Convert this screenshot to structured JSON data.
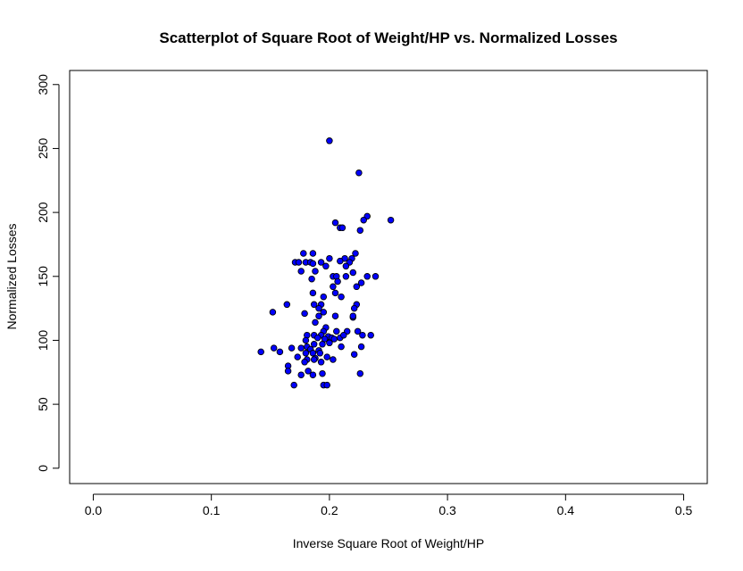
{
  "chart_data": {
    "type": "scatter",
    "title": "Scatterplot of Square Root of Weight/HP vs. Normalized Losses",
    "xlabel": "Inverse Square Root of Weight/HP",
    "ylabel": "Normalized Losses",
    "xlim": [
      -0.02,
      0.52
    ],
    "ylim": [
      -12,
      311
    ],
    "x_ticks": [
      0.0,
      0.1,
      0.2,
      0.3,
      0.4,
      0.5
    ],
    "x_tick_labels": [
      "0.0",
      "0.1",
      "0.2",
      "0.3",
      "0.4",
      "0.5"
    ],
    "y_ticks": [
      0,
      50,
      100,
      150,
      200,
      250,
      300
    ],
    "y_tick_labels": [
      "0",
      "50",
      "100",
      "150",
      "200",
      "250",
      "300"
    ],
    "grid": false,
    "point_fill": "#0000ff",
    "point_stroke": "#000000",
    "points": [
      [
        0.2,
        256
      ],
      [
        0.225,
        231
      ],
      [
        0.232,
        197
      ],
      [
        0.229,
        194
      ],
      [
        0.252,
        194
      ],
      [
        0.205,
        192
      ],
      [
        0.209,
        188
      ],
      [
        0.211,
        188
      ],
      [
        0.226,
        186
      ],
      [
        0.178,
        168
      ],
      [
        0.186,
        168
      ],
      [
        0.222,
        168
      ],
      [
        0.219,
        164
      ],
      [
        0.2,
        164
      ],
      [
        0.213,
        164
      ],
      [
        0.209,
        162
      ],
      [
        0.171,
        161
      ],
      [
        0.174,
        161
      ],
      [
        0.18,
        161
      ],
      [
        0.184,
        161
      ],
      [
        0.193,
        161
      ],
      [
        0.217,
        161
      ],
      [
        0.186,
        160
      ],
      [
        0.214,
        158
      ],
      [
        0.197,
        158
      ],
      [
        0.176,
        154
      ],
      [
        0.188,
        154
      ],
      [
        0.22,
        153
      ],
      [
        0.232,
        150
      ],
      [
        0.239,
        150
      ],
      [
        0.203,
        150
      ],
      [
        0.206,
        150
      ],
      [
        0.214,
        150
      ],
      [
        0.185,
        148
      ],
      [
        0.227,
        145
      ],
      [
        0.207,
        146
      ],
      [
        0.203,
        142
      ],
      [
        0.223,
        142
      ],
      [
        0.186,
        137
      ],
      [
        0.205,
        137
      ],
      [
        0.21,
        134
      ],
      [
        0.195,
        134
      ],
      [
        0.223,
        128
      ],
      [
        0.187,
        128
      ],
      [
        0.193,
        128
      ],
      [
        0.179,
        121
      ],
      [
        0.164,
        128
      ],
      [
        0.191,
        125
      ],
      [
        0.221,
        125
      ],
      [
        0.195,
        122
      ],
      [
        0.152,
        122
      ],
      [
        0.191,
        119
      ],
      [
        0.205,
        119
      ],
      [
        0.22,
        118
      ],
      [
        0.22,
        119
      ],
      [
        0.188,
        114
      ],
      [
        0.197,
        110
      ],
      [
        0.195,
        107
      ],
      [
        0.206,
        107
      ],
      [
        0.215,
        107
      ],
      [
        0.224,
        107
      ],
      [
        0.181,
        104
      ],
      [
        0.235,
        104
      ],
      [
        0.187,
        104
      ],
      [
        0.193,
        104
      ],
      [
        0.199,
        103
      ],
      [
        0.202,
        102
      ],
      [
        0.209,
        102
      ],
      [
        0.212,
        104
      ],
      [
        0.228,
        104
      ],
      [
        0.19,
        102
      ],
      [
        0.196,
        101
      ],
      [
        0.204,
        101
      ],
      [
        0.18,
        100
      ],
      [
        0.187,
        97
      ],
      [
        0.194,
        97
      ],
      [
        0.2,
        98
      ],
      [
        0.176,
        94
      ],
      [
        0.181,
        95
      ],
      [
        0.21,
        95
      ],
      [
        0.227,
        95
      ],
      [
        0.168,
        94
      ],
      [
        0.153,
        94
      ],
      [
        0.184,
        93
      ],
      [
        0.191,
        92
      ],
      [
        0.158,
        91
      ],
      [
        0.142,
        91
      ],
      [
        0.186,
        90
      ],
      [
        0.192,
        90
      ],
      [
        0.18,
        90
      ],
      [
        0.221,
        89
      ],
      [
        0.173,
        87
      ],
      [
        0.198,
        87
      ],
      [
        0.188,
        86
      ],
      [
        0.181,
        85
      ],
      [
        0.187,
        85
      ],
      [
        0.203,
        85
      ],
      [
        0.193,
        83
      ],
      [
        0.179,
        83
      ],
      [
        0.165,
        80
      ],
      [
        0.182,
        76
      ],
      [
        0.165,
        76
      ],
      [
        0.194,
        74
      ],
      [
        0.226,
        74
      ],
      [
        0.176,
        73
      ],
      [
        0.186,
        73
      ],
      [
        0.195,
        65
      ],
      [
        0.17,
        65
      ],
      [
        0.198,
        65
      ]
    ]
  }
}
